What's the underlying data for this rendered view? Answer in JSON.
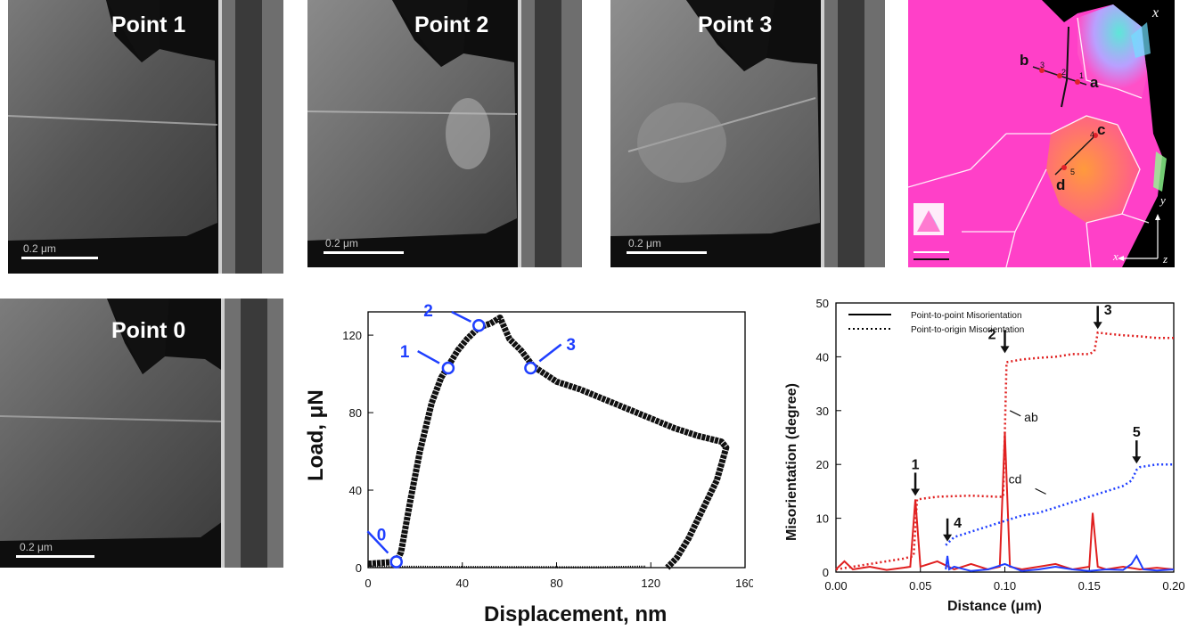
{
  "panels": {
    "point1": {
      "label": "Point 1",
      "scale": "0.2 μm"
    },
    "point2": {
      "label": "Point 2",
      "scale": "0.2 μm"
    },
    "point3": {
      "label": "Point 3",
      "scale": "0.2 μm"
    },
    "point0": {
      "label": "Point 0",
      "scale": "0.2 μm"
    }
  },
  "ebsd": {
    "axis_x_top": "x",
    "axis_y": "y",
    "axis_x": "x",
    "axis_z": "z",
    "point_labels": {
      "a": "a",
      "b": "b",
      "c": "c",
      "d": "d"
    },
    "line_numbers": [
      "1",
      "2",
      "3",
      "4",
      "5"
    ],
    "colors": {
      "matrix": "#ff40c8",
      "grain_orange": "#ff9a3c",
      "grain_cyan": "#5ee6d8",
      "boundary": "#ffffff",
      "line": "#1a1a1a",
      "marker": "#e0202a"
    }
  },
  "chart_data": [
    {
      "type": "scatter",
      "title": "",
      "xlabel": "Displacement, nm",
      "ylabel": "Load, μN",
      "xlim": [
        0,
        160
      ],
      "ylim": [
        0,
        132
      ],
      "xticks": [
        "0",
        "40",
        "80",
        "120",
        "160"
      ],
      "yticks": [
        "0",
        "40",
        "80",
        "120"
      ],
      "series": [
        {
          "values": [
            [
              0,
              2
            ],
            [
              12,
              3
            ],
            [
              14,
              8
            ],
            [
              18,
              35
            ],
            [
              22,
              60
            ],
            [
              27,
              85
            ],
            [
              31,
              98
            ],
            [
              34,
              104
            ],
            [
              38,
              112
            ],
            [
              42,
              118
            ],
            [
              47,
              124
            ],
            [
              52,
              126
            ],
            [
              56,
              129
            ],
            [
              60,
              118
            ],
            [
              65,
              112
            ],
            [
              70,
              104
            ],
            [
              80,
              96
            ],
            [
              90,
              92
            ],
            [
              100,
              87
            ],
            [
              110,
              82
            ],
            [
              120,
              77
            ],
            [
              130,
              72
            ],
            [
              140,
              68
            ],
            [
              150,
              65
            ],
            [
              152,
              62
            ],
            [
              148,
              45
            ],
            [
              142,
              30
            ],
            [
              136,
              15
            ],
            [
              131,
              5
            ],
            [
              127,
              0
            ]
          ]
        },
        {
          "values": [
            [
              0,
              0.5
            ],
            [
              40,
              0.3
            ],
            [
              80,
              0.2
            ],
            [
              100,
              0.2
            ],
            [
              118,
              0.5
            ]
          ]
        }
      ],
      "annotations": [
        {
          "label": "0",
          "x": 12,
          "y": 3
        },
        {
          "label": "1",
          "x": 34,
          "y": 103
        },
        {
          "label": "2",
          "x": 47,
          "y": 125
        },
        {
          "label": "3",
          "x": 69,
          "y": 103
        }
      ],
      "marker_color": "#1f3fff"
    },
    {
      "type": "line",
      "title": "",
      "xlabel": "Distance (μm)",
      "ylabel": "Misorientation (degree)",
      "xlim": [
        0,
        0.2
      ],
      "ylim": [
        0,
        50
      ],
      "xticks": [
        "0.00",
        "0.05",
        "0.10",
        "0.15",
        "0.20"
      ],
      "yticks": [
        "0",
        "10",
        "20",
        "30",
        "40",
        "50"
      ],
      "legend": [
        "Point-to-point Misorientation",
        "Point-to-origin Misorientation"
      ],
      "series": [
        {
          "name": "ab",
          "style": "solid",
          "color": "#e02020",
          "x": [
            0,
            0.005,
            0.01,
            0.02,
            0.03,
            0.04,
            0.044,
            0.047,
            0.05,
            0.06,
            0.07,
            0.08,
            0.09,
            0.097,
            0.1,
            0.103,
            0.11,
            0.12,
            0.13,
            0.14,
            0.15,
            0.152,
            0.155,
            0.16,
            0.17,
            0.18,
            0.19,
            0.2
          ],
          "y": [
            0.5,
            2,
            0.5,
            1,
            0.4,
            0.8,
            1,
            13.5,
            1,
            2,
            0.5,
            1.5,
            0.5,
            1,
            26,
            1,
            0.5,
            1,
            1.5,
            0.5,
            1,
            11,
            1,
            0.5,
            1,
            0.5,
            0.8,
            0.5
          ]
        },
        {
          "name": "cd",
          "style": "solid",
          "color": "#1f3fff",
          "x": [
            0.065,
            0.066,
            0.067,
            0.07,
            0.08,
            0.09,
            0.1,
            0.11,
            0.12,
            0.13,
            0.14,
            0.15,
            0.16,
            0.17,
            0.175,
            0.178,
            0.182,
            0.19,
            0.2
          ],
          "y": [
            0.5,
            3,
            0.5,
            1,
            0.2,
            0.5,
            1.5,
            0.2,
            0.5,
            1,
            0.5,
            0.2,
            0.5,
            0.4,
            1.5,
            3,
            0.5,
            0.3,
            0.5
          ]
        },
        {
          "name": "ab",
          "style": "dotted",
          "color": "#e02020",
          "x": [
            0,
            0.01,
            0.02,
            0.03,
            0.04,
            0.046,
            0.048,
            0.06,
            0.08,
            0.095,
            0.099,
            0.1,
            0.101,
            0.11,
            0.12,
            0.13,
            0.14,
            0.15,
            0.153,
            0.155,
            0.16,
            0.17,
            0.18,
            0.19,
            0.2
          ],
          "y": [
            0.5,
            1,
            1.5,
            2,
            2.5,
            3,
            13.5,
            14,
            14.2,
            14,
            14,
            26,
            39,
            39.5,
            39.8,
            40,
            40.5,
            40.5,
            41,
            44.5,
            44.3,
            44,
            43.8,
            43.5,
            43.5
          ]
        },
        {
          "name": "cd",
          "style": "dotted",
          "color": "#1f3fff",
          "x": [
            0.065,
            0.07,
            0.08,
            0.09,
            0.1,
            0.11,
            0.12,
            0.13,
            0.14,
            0.15,
            0.16,
            0.17,
            0.175,
            0.178,
            0.18,
            0.19,
            0.2
          ],
          "y": [
            5,
            6.5,
            7.5,
            8.5,
            9.5,
            10.5,
            11,
            12,
            13,
            14,
            15,
            16,
            17,
            19,
            19.5,
            20,
            20
          ]
        }
      ],
      "annotations": [
        {
          "label": "1",
          "x": 0.047,
          "y": 13.5
        },
        {
          "label": "2",
          "x": 0.1,
          "y": 40
        },
        {
          "label": "3",
          "x": 0.155,
          "y": 44.5
        },
        {
          "label": "4",
          "x": 0.066,
          "y": 5
        },
        {
          "label": "5",
          "x": 0.178,
          "y": 19.5
        },
        {
          "label": "ab",
          "x": 0.103,
          "y": 30
        },
        {
          "label": "cd",
          "x": 0.118,
          "y": 15.5
        }
      ]
    }
  ]
}
